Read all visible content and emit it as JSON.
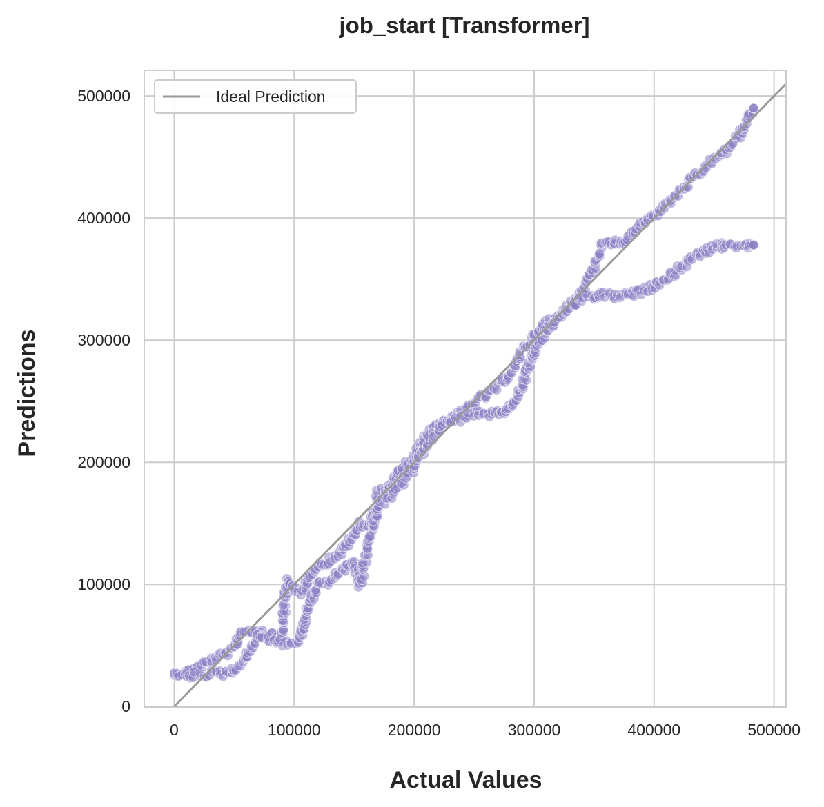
{
  "chart_data": {
    "type": "scatter",
    "title": "job_start [Transformer]",
    "xlabel": "Actual Values",
    "ylabel": "Predictions",
    "xlim": [
      -25000,
      510000
    ],
    "ylim": [
      -1000,
      521000
    ],
    "xticks": [
      0,
      100000,
      200000,
      300000,
      400000,
      500000
    ],
    "yticks": [
      0,
      100000,
      200000,
      300000,
      400000,
      500000
    ],
    "tick_labels": [
      "0",
      "100000",
      "200000",
      "300000",
      "400000",
      "500000"
    ],
    "grid": true,
    "legend": {
      "placement": "upper-left",
      "entries": [
        "Ideal Prediction"
      ]
    },
    "ideal_line": {
      "name": "Ideal Prediction",
      "color": "#999999",
      "x": [
        0,
        510000
      ],
      "y": [
        0,
        510000
      ]
    },
    "series": [
      {
        "color": "#8c7fc4",
        "approximate": true,
        "x": [
          0,
          10000,
          20000,
          30000,
          40000,
          50000,
          55000,
          60000,
          70000,
          80000,
          90000,
          92000,
          95000,
          100000,
          105000,
          110000,
          115000,
          120000,
          130000,
          140000,
          150000,
          155000,
          160000,
          165000,
          170000,
          180000,
          190000,
          200000,
          210000,
          220000,
          230000,
          240000,
          250000,
          260000,
          270000,
          280000,
          285000,
          290000,
          295000,
          300000,
          310000,
          320000,
          330000,
          340000,
          350000,
          355000,
          360000,
          365000,
          370000,
          380000,
          390000,
          400000,
          410000,
          420000,
          430000,
          440000,
          450000,
          460000,
          470000,
          480000,
          483000
        ],
        "y": [
          27000,
          28000,
          32000,
          38000,
          42000,
          46000,
          61000,
          62000,
          62000,
          60000,
          58000,
          85000,
          105000,
          95000,
          92000,
          100000,
          112000,
          115000,
          120000,
          127000,
          140000,
          150000,
          148000,
          152000,
          175000,
          180000,
          195000,
          203000,
          222000,
          232000,
          236000,
          240000,
          250000,
          255000,
          262000,
          272000,
          280000,
          293000,
          297000,
          303000,
          314000,
          320000,
          330000,
          340000,
          360000,
          375000,
          380000,
          378000,
          380000,
          385000,
          395000,
          402000,
          410000,
          420000,
          430000,
          438000,
          448000,
          455000,
          466000,
          485000,
          490000
        ]
      },
      {
        "color": "#8c7fc4",
        "approximate": true,
        "x": [
          0,
          10000,
          20000,
          30000,
          40000,
          50000,
          60000,
          70000,
          80000,
          90000,
          100000,
          105000,
          110000,
          120000,
          130000,
          140000,
          150000,
          155000,
          160000,
          165000,
          170000,
          180000,
          190000,
          200000,
          210000,
          220000,
          230000,
          240000,
          250000,
          260000,
          270000,
          280000,
          290000,
          300000,
          310000,
          320000,
          330000,
          340000,
          350000,
          360000,
          370000,
          380000,
          390000,
          400000,
          410000,
          420000,
          430000,
          440000,
          450000,
          460000,
          470000,
          480000,
          483000
        ],
        "y": [
          25000,
          25000,
          26000,
          27000,
          27000,
          30000,
          40000,
          58000,
          55000,
          52000,
          52000,
          55000,
          75000,
          100000,
          103000,
          112000,
          118000,
          98000,
          125000,
          145000,
          165000,
          172000,
          183000,
          196000,
          215000,
          228000,
          233000,
          236000,
          240000,
          238000,
          240000,
          245000,
          262000,
          293000,
          306000,
          318000,
          326000,
          334000,
          336000,
          337000,
          336000,
          337000,
          340000,
          345000,
          350000,
          358000,
          366000,
          372000,
          375000,
          378000,
          378000,
          377000,
          378000
        ]
      }
    ]
  }
}
